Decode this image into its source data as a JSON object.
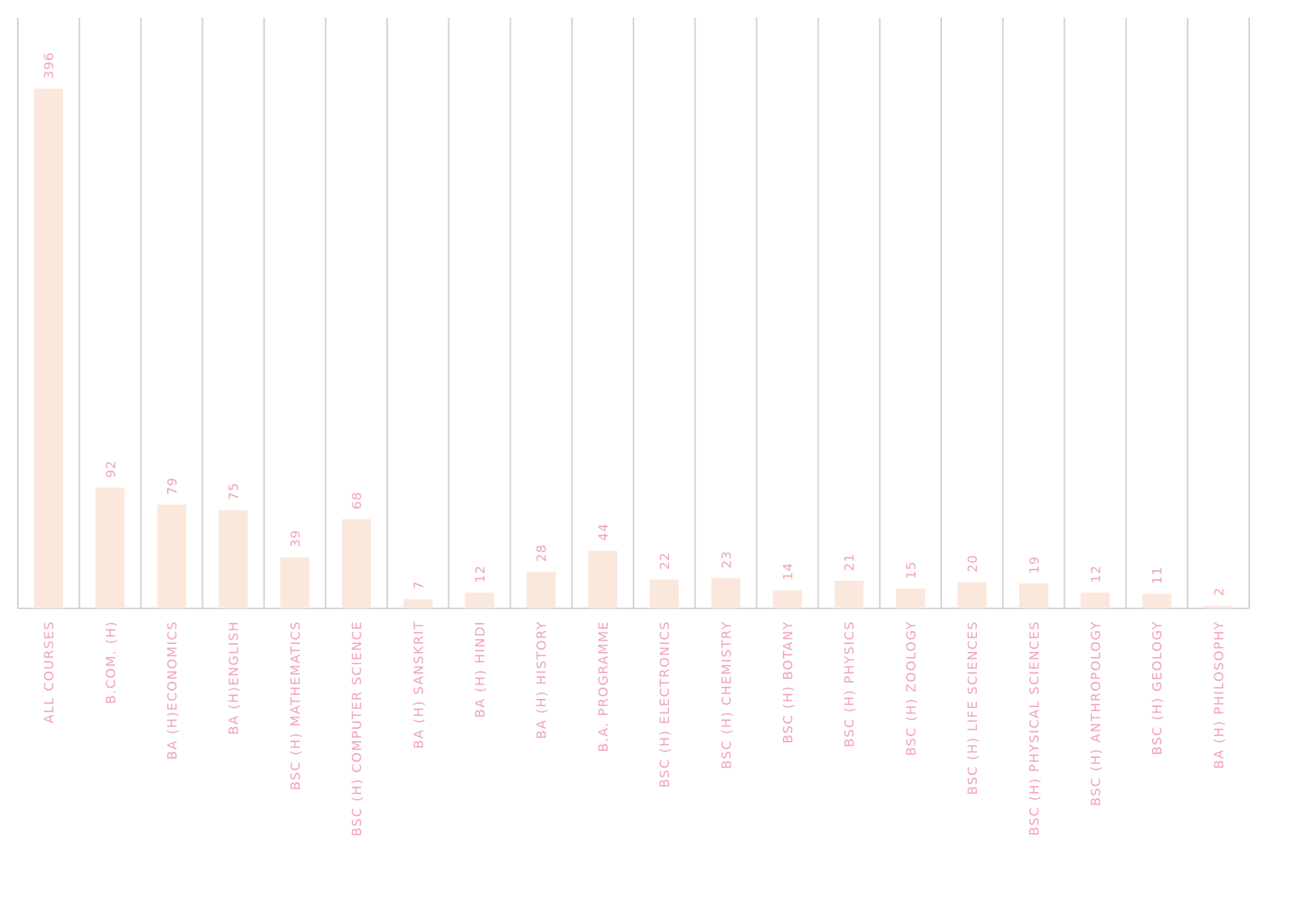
{
  "chart_data": {
    "type": "bar",
    "title": "",
    "xlabel": "",
    "ylabel": "",
    "ylim": [
      0,
      450
    ],
    "grid": "vertical separators",
    "categories": [
      "ALL COURSES",
      "B.COM. (H)",
      "BA (H)ECONOMICS",
      "BA (H)ENGLISH",
      "BSC (H) MATHEMATICS",
      "BSC (H) COMPUTER SCIENCE",
      "BA (H) SANSKRIT",
      "BA (H) HINDI",
      "BA (H) HISTORY",
      "B.A. PROGRAMME",
      "BSC (H) ELECTRONICS",
      "BSC (H) CHEMISTRY",
      "BSC (H) BOTANY",
      "BSC (H) PHYSICS",
      "BSC (H) ZOOLOGY",
      "BSC (H) LIFE SCIENCES",
      "BSC (H) PHYSICAL SCIENCES",
      "BSC (H) ANTHROPOLOGY",
      "BSC (H) GEOLOGY",
      "BA (H) PHILOSOPHY"
    ],
    "values": [
      396,
      92,
      79,
      75,
      39,
      68,
      7,
      12,
      28,
      44,
      22,
      23,
      14,
      21,
      15,
      20,
      19,
      12,
      11,
      2
    ],
    "colors": {
      "bar": "#fbe8dd",
      "label": "#f0a3b3",
      "grid": "#d4d4d4"
    }
  }
}
